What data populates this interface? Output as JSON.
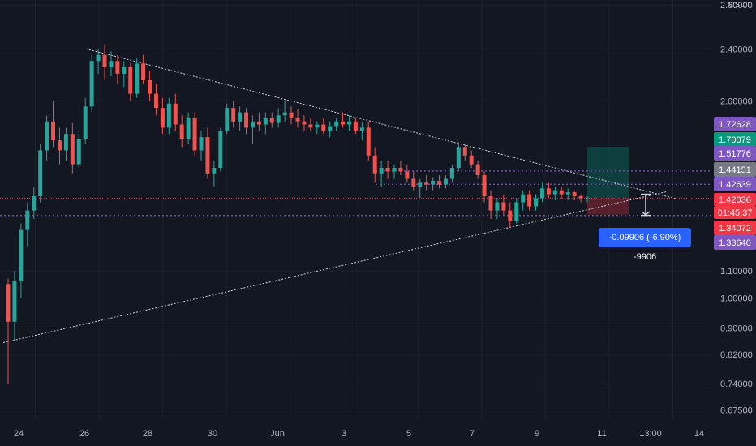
{
  "chart_data": {
    "type": "candlestick",
    "y_scale": "log",
    "ylim": [
      0.655,
      2.85
    ],
    "quote_unit": "USDT",
    "y_ticks": [
      "2.80000",
      "2.40000",
      "2.00000",
      "1.10000",
      "1.00000",
      "0.90000",
      "0.82000",
      "0.74000",
      "0.67500"
    ],
    "y_tick_values": [
      2.8,
      2.4,
      2.0,
      1.1,
      1.0,
      0.9,
      0.82,
      0.74,
      0.675
    ],
    "x_ticks": [
      "24",
      "26",
      "28",
      "30",
      "Jun",
      "3",
      "5",
      "7",
      "9",
      "11",
      "13:00",
      "14"
    ],
    "price_tags": [
      {
        "label": "1.72628",
        "value": 1.72628,
        "color": "#7e57c2",
        "text": "#ffffff"
      },
      {
        "label": "1.70079",
        "value": 1.70079,
        "color": "#089981",
        "text": "#ffffff"
      },
      {
        "label": "1.51776",
        "value": 1.51776,
        "color": "#7e57c2",
        "text": "#ffffff"
      },
      {
        "label": "1.44151",
        "value": 1.44151,
        "color": "#787b86",
        "text": "#ffffff"
      },
      {
        "label": "1.42639",
        "value": 1.42639,
        "color": "#7e57c2",
        "text": "#ffffff"
      },
      {
        "label": "1.42036",
        "value": 1.42036,
        "color": "#f23645",
        "text": "#ffffff"
      },
      {
        "label": "01:45:37",
        "value": 1.395,
        "color": "#f23645",
        "text": "#ffffff"
      },
      {
        "label": "1.34072",
        "value": 1.34072,
        "color": "#f23645",
        "text": "#ffffff"
      },
      {
        "label": "1.33640",
        "value": 1.3364,
        "color": "#7e57c2",
        "text": "#ffffff"
      }
    ],
    "horizontal_levels": [
      1.5625,
      1.4915,
      1.3364
    ],
    "current_price": 1.42036,
    "measure_label": "-0.09906 (-6.90%) -9906",
    "trendlines": [
      {
        "x1": 1.4,
        "y1": 2.38,
        "x2": 20.4,
        "y2": 1.45
      },
      {
        "x1": 0,
        "y1": 0.855,
        "x2": 20.2,
        "y2": 1.47
      }
    ],
    "long_position": {
      "x1": 17.9,
      "x2": 19.2,
      "entry": 1.42036,
      "target": 1.70079,
      "stop": 1.34072
    },
    "candles": [
      [
        1.05,
        1.07,
        0.74,
        0.92
      ],
      [
        0.92,
        1.1,
        0.86,
        1.06
      ],
      [
        1.06,
        1.3,
        1.0,
        1.27
      ],
      [
        1.27,
        1.4,
        1.2,
        1.36
      ],
      [
        1.36,
        1.48,
        1.32,
        1.43
      ],
      [
        1.43,
        1.72,
        1.4,
        1.68
      ],
      [
        1.68,
        1.9,
        1.62,
        1.86
      ],
      [
        1.86,
        2.0,
        1.7,
        1.74
      ],
      [
        1.74,
        1.82,
        1.6,
        1.68
      ],
      [
        1.68,
        1.82,
        1.62,
        1.78
      ],
      [
        1.78,
        1.85,
        1.55,
        1.6
      ],
      [
        1.6,
        1.8,
        1.58,
        1.75
      ],
      [
        1.75,
        2.02,
        1.72,
        1.96
      ],
      [
        1.96,
        2.35,
        1.92,
        2.3
      ],
      [
        2.3,
        2.4,
        2.2,
        2.35
      ],
      [
        2.35,
        2.44,
        2.15,
        2.25
      ],
      [
        2.25,
        2.38,
        2.18,
        2.3
      ],
      [
        2.3,
        2.35,
        2.12,
        2.2
      ],
      [
        2.2,
        2.3,
        2.1,
        2.25
      ],
      [
        2.25,
        2.28,
        2.0,
        2.05
      ],
      [
        2.05,
        2.32,
        2.02,
        2.28
      ],
      [
        2.28,
        2.35,
        2.12,
        2.15
      ],
      [
        2.15,
        2.22,
        2.0,
        2.05
      ],
      [
        2.05,
        2.12,
        1.9,
        1.95
      ],
      [
        1.95,
        2.02,
        1.78,
        1.82
      ],
      [
        1.82,
        2.02,
        1.78,
        1.98
      ],
      [
        1.98,
        2.05,
        1.8,
        1.84
      ],
      [
        1.84,
        1.9,
        1.7,
        1.75
      ],
      [
        1.75,
        1.92,
        1.72,
        1.88
      ],
      [
        1.88,
        1.92,
        1.65,
        1.68
      ],
      [
        1.68,
        1.8,
        1.62,
        1.76
      ],
      [
        1.76,
        1.82,
        1.52,
        1.55
      ],
      [
        1.55,
        1.62,
        1.48,
        1.58
      ],
      [
        1.58,
        1.82,
        1.56,
        1.8
      ],
      [
        1.8,
        1.98,
        1.78,
        1.95
      ],
      [
        1.95,
        2.0,
        1.82,
        1.86
      ],
      [
        1.86,
        1.96,
        1.8,
        1.92
      ],
      [
        1.92,
        1.95,
        1.78,
        1.82
      ],
      [
        1.82,
        1.9,
        1.72,
        1.86
      ],
      [
        1.86,
        1.92,
        1.8,
        1.84
      ],
      [
        1.84,
        1.92,
        1.78,
        1.88
      ],
      [
        1.88,
        1.92,
        1.82,
        1.85
      ],
      [
        1.85,
        1.95,
        1.82,
        1.9
      ],
      [
        1.9,
        2.0,
        1.86,
        1.92
      ],
      [
        1.92,
        1.96,
        1.84,
        1.88
      ],
      [
        1.88,
        1.94,
        1.82,
        1.86
      ],
      [
        1.86,
        1.9,
        1.8,
        1.84
      ],
      [
        1.84,
        1.88,
        1.8,
        1.82
      ],
      [
        1.82,
        1.86,
        1.78,
        1.84
      ],
      [
        1.84,
        1.88,
        1.78,
        1.8
      ],
      [
        1.8,
        1.86,
        1.76,
        1.83
      ],
      [
        1.83,
        1.88,
        1.8,
        1.86
      ],
      [
        1.86,
        1.92,
        1.82,
        1.84
      ],
      [
        1.84,
        1.9,
        1.8,
        1.86
      ],
      [
        1.86,
        1.88,
        1.78,
        1.8
      ],
      [
        1.8,
        1.86,
        1.74,
        1.82
      ],
      [
        1.82,
        1.86,
        1.62,
        1.65
      ],
      [
        1.65,
        1.7,
        1.5,
        1.55
      ],
      [
        1.55,
        1.62,
        1.48,
        1.58
      ],
      [
        1.58,
        1.62,
        1.52,
        1.56
      ],
      [
        1.56,
        1.6,
        1.52,
        1.58
      ],
      [
        1.58,
        1.62,
        1.54,
        1.56
      ],
      [
        1.56,
        1.6,
        1.5,
        1.52
      ],
      [
        1.52,
        1.56,
        1.46,
        1.48
      ],
      [
        1.48,
        1.52,
        1.42,
        1.5
      ],
      [
        1.5,
        1.54,
        1.46,
        1.49
      ],
      [
        1.49,
        1.53,
        1.46,
        1.51
      ],
      [
        1.51,
        1.54,
        1.47,
        1.49
      ],
      [
        1.49,
        1.54,
        1.47,
        1.52
      ],
      [
        1.52,
        1.6,
        1.5,
        1.58
      ],
      [
        1.58,
        1.73,
        1.56,
        1.7
      ],
      [
        1.7,
        1.72,
        1.62,
        1.65
      ],
      [
        1.65,
        1.68,
        1.58,
        1.6
      ],
      [
        1.6,
        1.62,
        1.52,
        1.54
      ],
      [
        1.54,
        1.56,
        1.4,
        1.43
      ],
      [
        1.43,
        1.46,
        1.32,
        1.36
      ],
      [
        1.36,
        1.42,
        1.32,
        1.4
      ],
      [
        1.4,
        1.44,
        1.34,
        1.36
      ],
      [
        1.36,
        1.4,
        1.28,
        1.31
      ],
      [
        1.31,
        1.42,
        1.3,
        1.4
      ],
      [
        1.4,
        1.46,
        1.36,
        1.44
      ],
      [
        1.44,
        1.46,
        1.36,
        1.38
      ],
      [
        1.38,
        1.44,
        1.36,
        1.42
      ],
      [
        1.42,
        1.5,
        1.4,
        1.47
      ],
      [
        1.47,
        1.5,
        1.42,
        1.44
      ],
      [
        1.44,
        1.48,
        1.41,
        1.46
      ],
      [
        1.46,
        1.48,
        1.42,
        1.44
      ],
      [
        1.44,
        1.47,
        1.41,
        1.45
      ],
      [
        1.45,
        1.46,
        1.41,
        1.43
      ],
      [
        1.43,
        1.44,
        1.4,
        1.42
      ],
      [
        1.42,
        1.43,
        1.4,
        1.42
      ]
    ]
  }
}
